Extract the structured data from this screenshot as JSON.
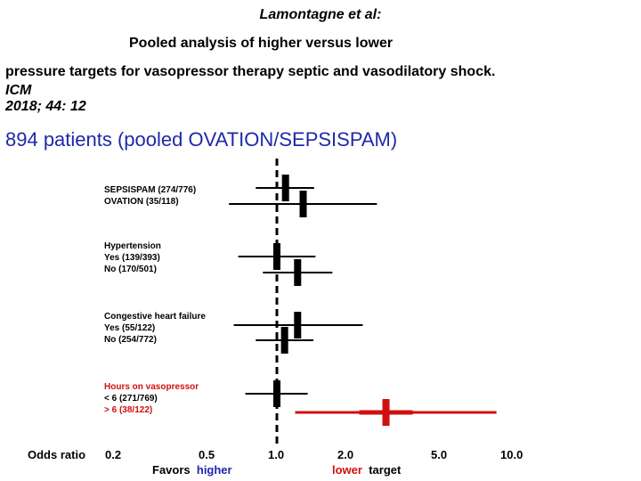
{
  "title": {
    "author": "Lamontagne et al:",
    "line2": "Pooled analysis of higher versus lower",
    "line3": "pressure targets for vasopressor therapy septic and vasodilatory shock.",
    "journal": "ICM",
    "citation": "2018; 44: 12"
  },
  "headline": "894 patients (pooled OVATION/SEPSISPAM)",
  "colors": {
    "headline": "#1f28a8",
    "highlight": "#d01010",
    "higher": "#1f28a8",
    "lower": "#d01010"
  },
  "chart_data": {
    "type": "forest",
    "x_scale": "log",
    "xlabel": "Odds ratio",
    "xticks": [
      "0.2",
      "0.5",
      "1.0",
      "2.0",
      "5.0",
      "10.0"
    ],
    "reference_line": 1.0,
    "favors_prefix": "Favors",
    "favors_left": "higher",
    "favors_right": "lower",
    "favors_suffix": "target",
    "groups": [
      {
        "title": "",
        "rows": [
          {
            "label": "SEPSISPAM (274/776)",
            "or": 1.09,
            "low": 0.81,
            "high": 1.45
          },
          {
            "label": "OVATION  (35/118)",
            "or": 1.3,
            "low": 0.62,
            "high": 2.7
          }
        ]
      },
      {
        "title": "Hypertension",
        "rows": [
          {
            "label": "Yes  (139/393)",
            "or": 1.0,
            "low": 0.68,
            "high": 1.47
          },
          {
            "label": "No  (170/501)",
            "or": 1.23,
            "low": 0.87,
            "high": 1.74
          }
        ]
      },
      {
        "title": "Congestive heart failure",
        "rows": [
          {
            "label": "Yes  (55/122)",
            "or": 1.23,
            "low": 0.65,
            "high": 2.35
          },
          {
            "label": "No  (254/772)",
            "or": 1.08,
            "low": 0.81,
            "high": 1.44
          }
        ]
      },
      {
        "title": "Hours on vasopressor",
        "title_highlight": true,
        "rows": [
          {
            "label": "< 6  (271/769)",
            "or": 1.0,
            "low": 0.73,
            "high": 1.36
          },
          {
            "label": "> 6  (38/122)",
            "or": 2.95,
            "low": 1.2,
            "high": 8.8,
            "highlight": true
          }
        ]
      }
    ]
  }
}
